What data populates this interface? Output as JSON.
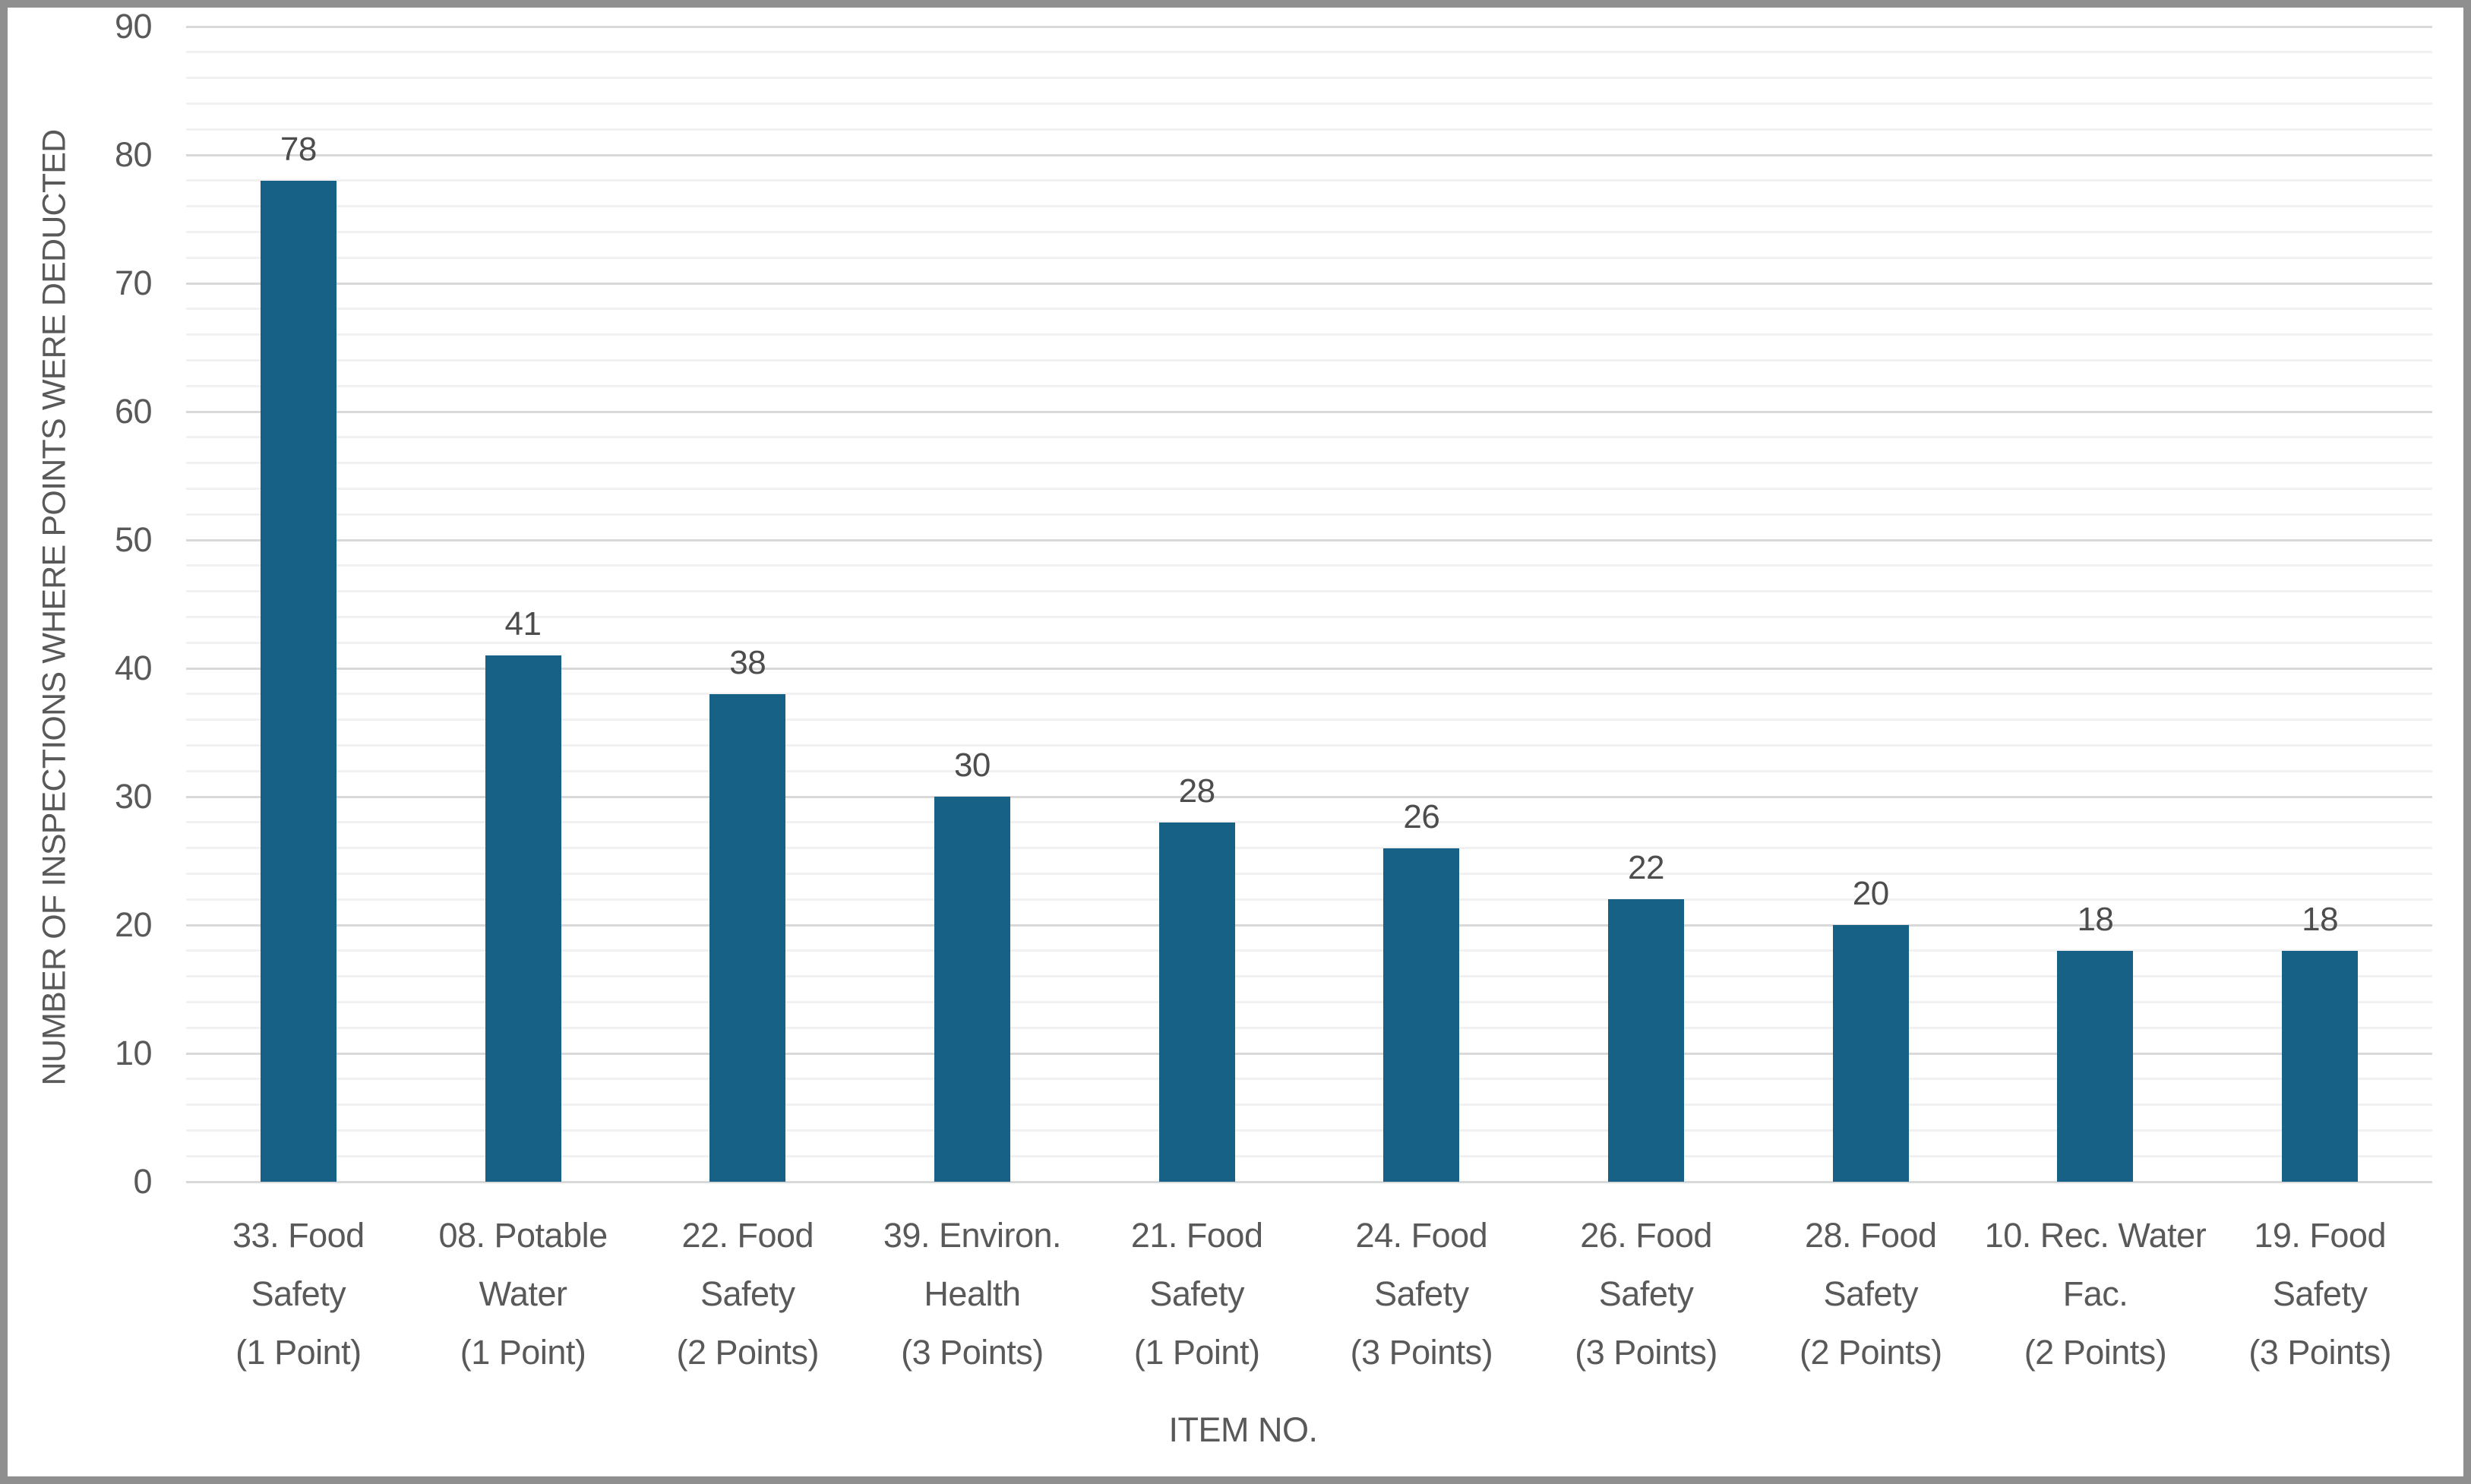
{
  "chart_data": {
    "type": "bar",
    "title": "",
    "xlabel": "ITEM NO.",
    "ylabel": "NUMBER OF INSPECTIONS WHERE POINTS WERE DEDUCTED",
    "categories": [
      "33. Food Safety (1 Point)",
      "08. Potable Water (1 Point)",
      "22. Food Safety (2 Points)",
      "39. Environ. Health (3 Points)",
      "21. Food Safety (1 Point)",
      "24. Food Safety (3 Points)",
      "26. Food Safety (3 Points)",
      "28. Food Safety (2 Points)",
      "10. Rec. Water Fac. (2 Points)",
      "19. Food Safety (3 Points)"
    ],
    "category_lines": [
      [
        "33. Food",
        "Safety",
        "(1 Point)"
      ],
      [
        "08. Potable",
        "Water",
        "(1 Point)"
      ],
      [
        "22. Food",
        "Safety",
        "(2 Points)"
      ],
      [
        "39. Environ.",
        "Health",
        "(3 Points)"
      ],
      [
        "21. Food",
        "Safety",
        "(1 Point)"
      ],
      [
        "24. Food",
        "Safety",
        "(3 Points)"
      ],
      [
        "26. Food",
        "Safety",
        "(3 Points)"
      ],
      [
        "28. Food",
        "Safety",
        "(2 Points)"
      ],
      [
        "10. Rec. Water",
        "Fac.",
        "(2 Points)"
      ],
      [
        "19. Food",
        "Safety",
        "(3 Points)"
      ]
    ],
    "values": [
      78,
      41,
      38,
      30,
      28,
      26,
      22,
      20,
      18,
      18
    ],
    "data_labels": [
      78,
      41,
      38,
      30,
      28,
      26,
      22,
      20,
      18,
      18
    ],
    "ylim": [
      0,
      90
    ],
    "y_ticks": [
      0,
      10,
      20,
      30,
      40,
      50,
      60,
      70,
      80,
      90
    ],
    "y_tick_step": 10,
    "y_minor_gridline_step": 2,
    "grid": true,
    "legend_position": "none",
    "bar_color": "#166185"
  }
}
